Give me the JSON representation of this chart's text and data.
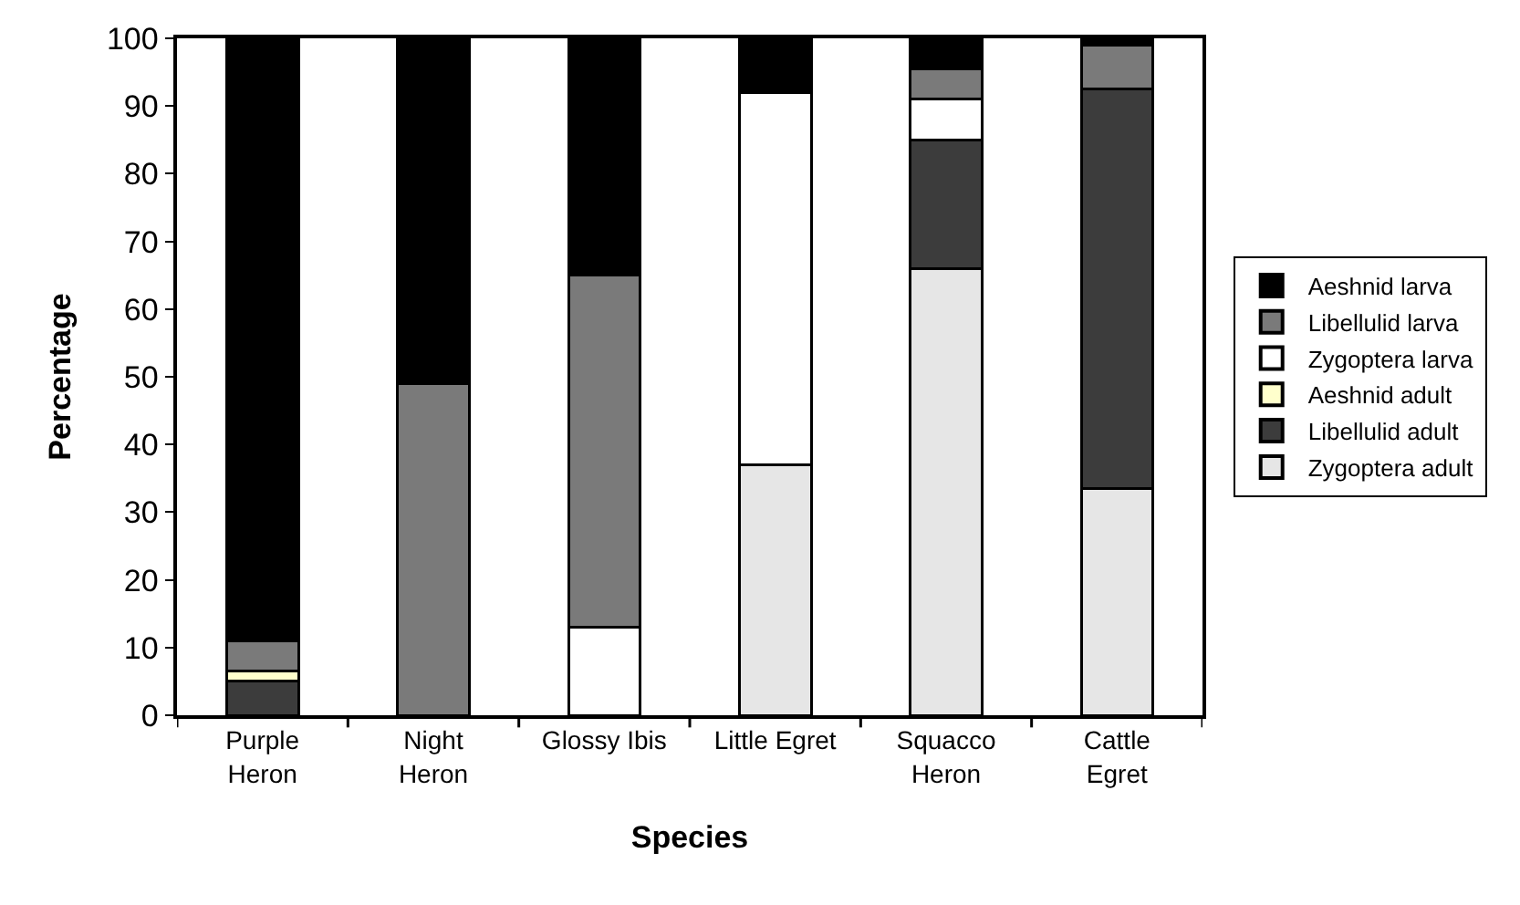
{
  "chart_data": {
    "type": "bar",
    "stacked": true,
    "xlabel": "Species",
    "ylabel": "Percentage",
    "categories": [
      "Purple\nHeron",
      "Night\nHeron",
      "Glossy Ibis",
      "Little Egret",
      "Squacco\nHeron",
      "Cattle\nEgret"
    ],
    "series": [
      {
        "name": "Zygoptera adult",
        "color": "#e6e6e6",
        "values": [
          0,
          0,
          0,
          37,
          66,
          33.5
        ]
      },
      {
        "name": "Libellulid adult",
        "color": "#3c3c3c",
        "values": [
          5,
          0,
          0,
          0,
          19,
          59
        ]
      },
      {
        "name": "Aeshnid adult",
        "color": "#ffffcc",
        "values": [
          1.5,
          0,
          0,
          0,
          0,
          0
        ]
      },
      {
        "name": "Zygoptera larva",
        "color": "#ffffff",
        "values": [
          0,
          0,
          13,
          55,
          6,
          0
        ]
      },
      {
        "name": "Libellulid larva",
        "color": "#7a7a7a",
        "values": [
          4.5,
          49,
          52,
          0,
          4.5,
          6.5
        ]
      },
      {
        "name": "Aeshnid larva",
        "color": "#000000",
        "values": [
          89,
          51,
          35,
          8,
          4.5,
          1
        ]
      }
    ],
    "ylim": [
      0,
      100
    ],
    "yticks": [
      0,
      10,
      20,
      30,
      40,
      50,
      60,
      70,
      80,
      90,
      100
    ],
    "grid": false,
    "legend": "right"
  }
}
